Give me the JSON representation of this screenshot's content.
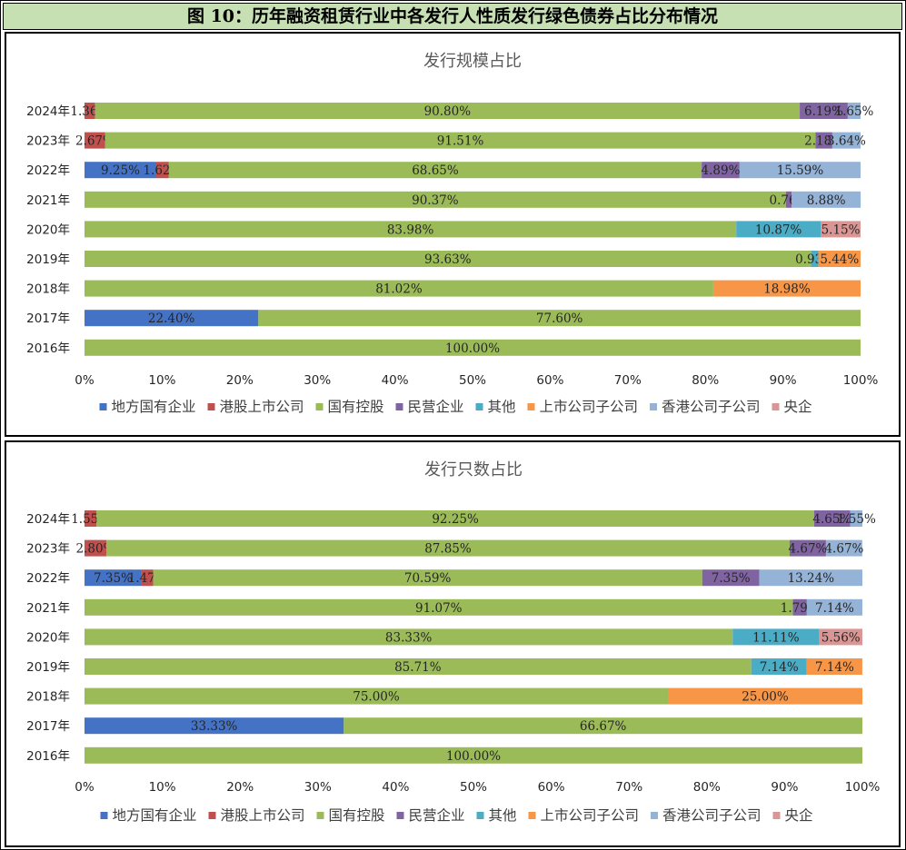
{
  "page_title": "图 10：历年融资租赁行业中各发行人性质发行绿色债券占比分布情况",
  "series_colors": {
    "地方国有企业": "#4472c4",
    "港股上市公司": "#c0504d",
    "国有控股": "#9bbb59",
    "民营企业": "#8064a2",
    "其他": "#4bacc6",
    "上市公司子公司": "#f79646",
    "香港公司子公司": "#95b3d7",
    "央企": "#d99694"
  },
  "legend": [
    "地方国有企业",
    "港股上市公司",
    "国有控股",
    "民营企业",
    "其他",
    "上市公司子公司",
    "香港公司子公司",
    "央企"
  ],
  "chart_data": [
    {
      "type": "bar",
      "orientation": "horizontal-stacked-100",
      "title": "发行规模占比",
      "categories": [
        "2024年",
        "2023年",
        "2022年",
        "2021年",
        "2020年",
        "2019年",
        "2018年",
        "2017年",
        "2016年"
      ],
      "xlim": [
        0,
        100
      ],
      "x_ticks": [
        "0%",
        "10%",
        "20%",
        "30%",
        "40%",
        "50%",
        "60%",
        "70%",
        "80%",
        "90%",
        "100%"
      ],
      "legend_position": "bottom",
      "series": [
        {
          "name": "地方国有企业",
          "values": [
            0,
            0,
            9.25,
            0,
            0,
            0,
            0,
            22.4,
            0
          ],
          "labels": [
            "",
            "",
            "9.25%",
            "",
            "",
            "",
            "",
            "22.40%",
            ""
          ]
        },
        {
          "name": "港股上市公司",
          "values": [
            1.36,
            2.67,
            1.62,
            0,
            0,
            0,
            0,
            0,
            0
          ],
          "labels": [
            "1.36%",
            "2.67%",
            "1.62%",
            "",
            "",
            "",
            "",
            "",
            ""
          ]
        },
        {
          "name": "国有控股",
          "values": [
            90.8,
            91.51,
            68.65,
            90.37,
            83.98,
            93.63,
            81.02,
            77.6,
            100.0
          ],
          "labels": [
            "90.80%",
            "91.51%",
            "68.65%",
            "90.37%",
            "83.98%",
            "93.63%",
            "81.02%",
            "77.60%",
            "100.00%"
          ]
        },
        {
          "name": "民营企业",
          "values": [
            6.19,
            2.18,
            4.89,
            0.76,
            0,
            0,
            0,
            0,
            0
          ],
          "labels": [
            "6.19%",
            "2.18%",
            "4.89%",
            "0.76%",
            "",
            "",
            "",
            "",
            ""
          ]
        },
        {
          "name": "其他",
          "values": [
            0,
            0,
            0,
            0,
            10.87,
            0.93,
            0,
            0,
            0
          ],
          "labels": [
            "",
            "",
            "",
            "",
            "10.87%",
            "0.93%",
            "",
            "",
            ""
          ]
        },
        {
          "name": "上市公司子公司",
          "values": [
            0,
            0,
            0,
            0,
            0,
            5.44,
            18.98,
            0,
            0
          ],
          "labels": [
            "",
            "",
            "",
            "",
            "",
            "5.44%",
            "18.98%",
            "",
            ""
          ]
        },
        {
          "name": "香港公司子公司",
          "values": [
            1.65,
            3.64,
            15.59,
            8.88,
            0,
            0,
            0,
            0,
            0
          ],
          "labels": [
            "1.65%",
            "3.64%",
            "15.59%",
            "8.88%",
            "",
            "",
            "",
            "",
            ""
          ]
        },
        {
          "name": "央企",
          "values": [
            0,
            0,
            0,
            0,
            5.15,
            0,
            0,
            0,
            0
          ],
          "labels": [
            "",
            "",
            "",
            "",
            "5.15%",
            "",
            "",
            "",
            ""
          ]
        }
      ]
    },
    {
      "type": "bar",
      "orientation": "horizontal-stacked-100",
      "title": "发行只数占比",
      "categories": [
        "2024年",
        "2023年",
        "2022年",
        "2021年",
        "2020年",
        "2019年",
        "2018年",
        "2017年",
        "2016年"
      ],
      "xlim": [
        0,
        100
      ],
      "x_ticks": [
        "0%",
        "10%",
        "20%",
        "30%",
        "40%",
        "50%",
        "60%",
        "70%",
        "80%",
        "90%",
        "100%"
      ],
      "legend_position": "bottom",
      "series": [
        {
          "name": "地方国有企业",
          "values": [
            0,
            0,
            7.35,
            0,
            0,
            0,
            0,
            33.33,
            0
          ],
          "labels": [
            "",
            "",
            "7.35%",
            "",
            "",
            "",
            "",
            "33.33%",
            ""
          ]
        },
        {
          "name": "港股上市公司",
          "values": [
            1.55,
            2.8,
            1.47,
            0,
            0,
            0,
            0,
            0,
            0
          ],
          "labels": [
            "1.55%",
            "2.80%",
            "1.47%",
            "",
            "",
            "",
            "",
            "",
            ""
          ]
        },
        {
          "name": "国有控股",
          "values": [
            92.25,
            87.85,
            70.59,
            91.07,
            83.33,
            85.71,
            75.0,
            66.67,
            100.0
          ],
          "labels": [
            "92.25%",
            "87.85%",
            "70.59%",
            "91.07%",
            "83.33%",
            "85.71%",
            "75.00%",
            "66.67%",
            "100.00%"
          ]
        },
        {
          "name": "民营企业",
          "values": [
            4.65,
            4.67,
            7.35,
            1.79,
            0,
            0,
            0,
            0,
            0
          ],
          "labels": [
            "4.65%",
            "4.67%",
            "7.35%",
            "1.79%",
            "",
            "",
            "",
            "",
            ""
          ]
        },
        {
          "name": "其他",
          "values": [
            0,
            0,
            0,
            0,
            11.11,
            7.14,
            0,
            0,
            0
          ],
          "labels": [
            "",
            "",
            "",
            "",
            "11.11%",
            "7.14%",
            "",
            "",
            ""
          ]
        },
        {
          "name": "上市公司子公司",
          "values": [
            0,
            0,
            0,
            0,
            0,
            7.14,
            25.0,
            0,
            0
          ],
          "labels": [
            "",
            "",
            "",
            "",
            "",
            "7.14%",
            "25.00%",
            "",
            ""
          ]
        },
        {
          "name": "香港公司子公司",
          "values": [
            1.55,
            4.67,
            13.24,
            7.14,
            0,
            0,
            0,
            0,
            0
          ],
          "labels": [
            "1.55%",
            "4.67%",
            "13.24%",
            "7.14%",
            "",
            "",
            "",
            "",
            ""
          ]
        },
        {
          "name": "央企",
          "values": [
            0,
            0,
            0,
            0,
            5.56,
            0,
            0,
            0,
            0
          ],
          "labels": [
            "",
            "",
            "",
            "",
            "5.56%",
            "",
            "",
            "",
            ""
          ]
        }
      ]
    }
  ]
}
